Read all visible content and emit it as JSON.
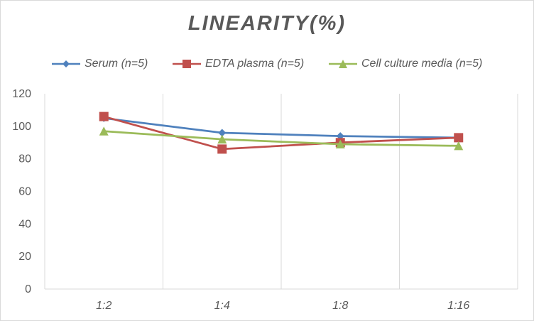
{
  "chart_data": {
    "type": "line",
    "title": "LINEARITY(%)",
    "xlabel": "",
    "ylabel": "",
    "categories": [
      "1:2",
      "1:4",
      "1:8",
      "1:16"
    ],
    "ylim": [
      0,
      120
    ],
    "yticks": [
      0,
      20,
      40,
      60,
      80,
      100,
      120
    ],
    "grid": "vertical",
    "legend_position": "top",
    "series": [
      {
        "name": "Serum (n=5)",
        "values": [
          105,
          96,
          94,
          93
        ],
        "color": "#4f81bd",
        "marker": "diamond"
      },
      {
        "name": "EDTA plasma (n=5)",
        "values": [
          106,
          86,
          90,
          93
        ],
        "color": "#c0504d",
        "marker": "square"
      },
      {
        "name": "Cell culture media (n=5)",
        "values": [
          97,
          92,
          89,
          88
        ],
        "color": "#9bbb59",
        "marker": "triangle"
      }
    ]
  }
}
